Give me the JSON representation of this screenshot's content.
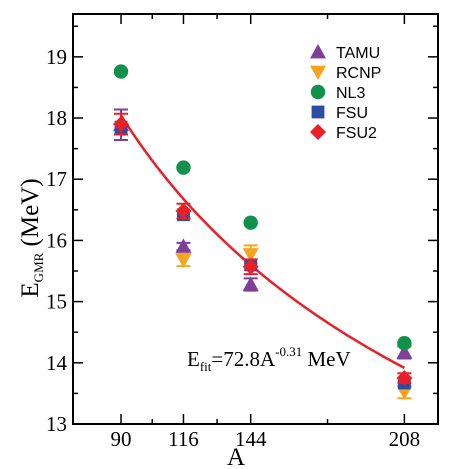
{
  "chart_data": {
    "type": "scatter",
    "xlabel": "A",
    "ylabel": {
      "main": "E",
      "sub": "GMR",
      "unit": " (MeV)"
    },
    "x_ticks": [
      90,
      116,
      144,
      208
    ],
    "y_ticks": [
      13,
      14,
      15,
      16,
      17,
      18,
      19
    ],
    "xlim": [
      70,
      222
    ],
    "ylim": [
      13,
      19.7
    ],
    "grid": false,
    "legend_position": "top-right",
    "series": [
      {
        "name": "TAMU",
        "marker": "triangle-up",
        "color": "#7f3f98",
        "points": [
          {
            "x": 90,
            "y": 17.89,
            "err": 0.25
          },
          {
            "x": 116,
            "y": 15.9,
            "err": 0.06
          },
          {
            "x": 144,
            "y": 15.28,
            "err": 0.1
          },
          {
            "x": 208,
            "y": 14.17,
            "err": 0.1
          }
        ]
      },
      {
        "name": "RCNP",
        "marker": "triangle-down",
        "color": "#f7a520",
        "points": [
          {
            "x": 116,
            "y": 15.68,
            "err": 0.1
          },
          {
            "x": 144,
            "y": 15.77,
            "err": 0.15
          },
          {
            "x": 208,
            "y": 13.52,
            "err": 0.1
          }
        ]
      },
      {
        "name": "NL3",
        "marker": "circle",
        "color": "#12914b",
        "points": [
          {
            "x": 90,
            "y": 18.76
          },
          {
            "x": 116,
            "y": 17.19
          },
          {
            "x": 144,
            "y": 16.29
          },
          {
            "x": 208,
            "y": 14.32
          }
        ]
      },
      {
        "name": "FSU",
        "marker": "square",
        "color": "#2b4da3",
        "points": [
          {
            "x": 90,
            "y": 17.85
          },
          {
            "x": 116,
            "y": 16.42
          },
          {
            "x": 144,
            "y": 15.6
          },
          {
            "x": 208,
            "y": 13.67
          }
        ]
      },
      {
        "name": "FSU2",
        "marker": "diamond",
        "color": "#e8202a",
        "points": [
          {
            "x": 90,
            "y": 17.9,
            "err": 0.17
          },
          {
            "x": 116,
            "y": 16.48,
            "err": 0.12
          },
          {
            "x": 144,
            "y": 15.57,
            "err": 0.12
          },
          {
            "x": 208,
            "y": 13.75,
            "err": 0.08
          }
        ]
      }
    ],
    "fit": {
      "coefficient": 72.8,
      "exponent": -0.31,
      "x_range": [
        90,
        208
      ],
      "color": "#e8202a",
      "label": {
        "lhs": "E",
        "sub": "fit",
        "eq": "=72.8A",
        "sup": "-0.31",
        "unit": " MeV"
      }
    }
  }
}
